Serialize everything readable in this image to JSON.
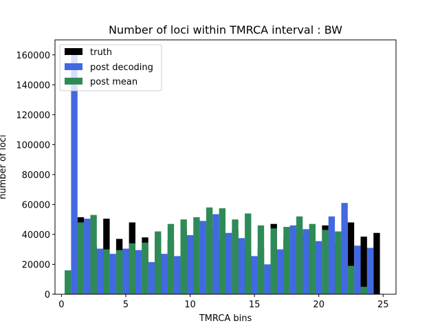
{
  "chart_data": {
    "type": "bar",
    "title": "Number of loci within TMRCA interval : BW",
    "xlabel": "TMRCA bins",
    "ylabel": "number of loci",
    "xlim": [
      -0.5,
      26
    ],
    "ylim": [
      0,
      170000
    ],
    "xticks": [
      0,
      5,
      10,
      15,
      20,
      25
    ],
    "yticks": [
      0,
      20000,
      40000,
      60000,
      80000,
      100000,
      120000,
      140000,
      160000
    ],
    "legend_position": "upper-left",
    "grid": false,
    "categories": [
      1,
      2,
      3,
      4,
      5,
      6,
      7,
      8,
      9,
      10,
      11,
      12,
      13,
      14,
      15,
      16,
      17,
      18,
      19,
      20,
      21,
      22,
      23,
      24,
      25
    ],
    "series": [
      {
        "name": "truth",
        "color": "#000000",
        "offset": 0.5,
        "values": [
          51500,
          32000,
          50500,
          37000,
          48000,
          38000,
          38000,
          36000,
          43000,
          39500,
          44000,
          36000,
          43000,
          32000,
          31000,
          47000,
          37000,
          40000,
          42000,
          46000,
          34000,
          48000,
          38500,
          41000,
          0
        ]
      },
      {
        "name": "post decoding",
        "color": "#4169e1",
        "offset": 0.0,
        "values": [
          160000,
          50500,
          30500,
          27000,
          30500,
          29500,
          21500,
          27000,
          25500,
          39500,
          49000,
          53500,
          41000,
          37500,
          25500,
          20000,
          30000,
          46000,
          43500,
          35500,
          52000,
          61000,
          32500,
          31000,
          0
        ]
      },
      {
        "name": "post mean",
        "color": "#2e8b57",
        "offset": -0.5,
        "values": [
          16000,
          48000,
          53000,
          30000,
          29500,
          34000,
          34500,
          42000,
          47000,
          50000,
          51500,
          58000,
          57500,
          50000,
          54000,
          46000,
          44000,
          45000,
          52000,
          47000,
          43000,
          42000,
          19000,
          5000,
          0
        ]
      }
    ]
  }
}
